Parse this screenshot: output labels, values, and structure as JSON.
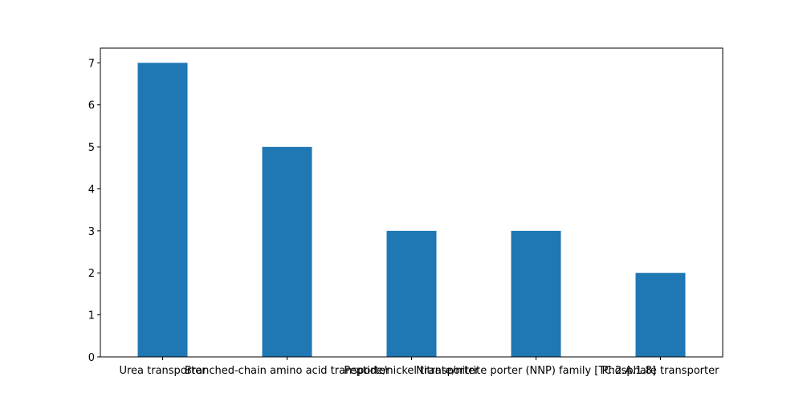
{
  "chart_data": {
    "type": "bar",
    "categories": [
      "Urea transporter",
      "Branched-chain amino acid transporter",
      "Peptide/nickel transporter",
      "Nitrate/nitrite porter (NNP) family [TC:2.A.1.8]",
      "Phosphate transporter"
    ],
    "values": [
      7,
      5,
      3,
      3,
      2
    ],
    "title": "",
    "xlabel": "",
    "ylabel": "",
    "ylim": [
      0,
      7.35
    ],
    "yticks": [
      0,
      1,
      2,
      3,
      4,
      5,
      6,
      7
    ],
    "grid": false,
    "bar_color": "#1f77b4"
  }
}
